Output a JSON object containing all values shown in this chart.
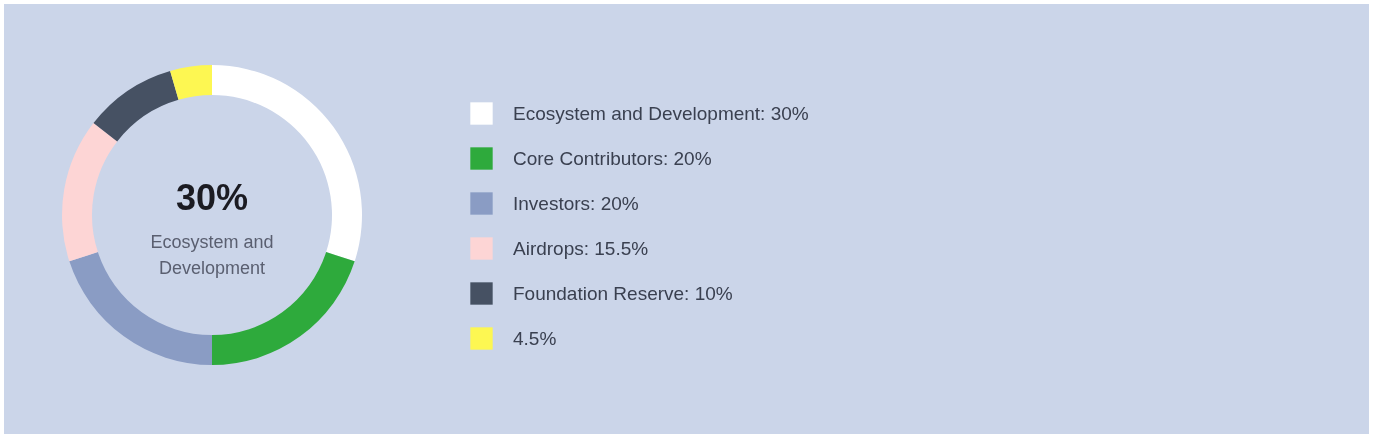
{
  "chart_data": {
    "type": "donut",
    "categories": [
      "Ecosystem and Development: 30%",
      "Core Contributors: 20%",
      "Investors: 20%",
      "Airdrops: 15.5%",
      "Foundation Reserve: 10%",
      "4.5%"
    ],
    "values": [
      30,
      20,
      20,
      15.5,
      10,
      4.5
    ],
    "colors": [
      "#ffffff",
      "#2eaa3c",
      "#8a9cc4",
      "#fdd5d5",
      "#465163",
      "#fdf752"
    ],
    "legend": "right",
    "annotations": [
      "30%",
      "Ecosystem and Development"
    ]
  }
}
